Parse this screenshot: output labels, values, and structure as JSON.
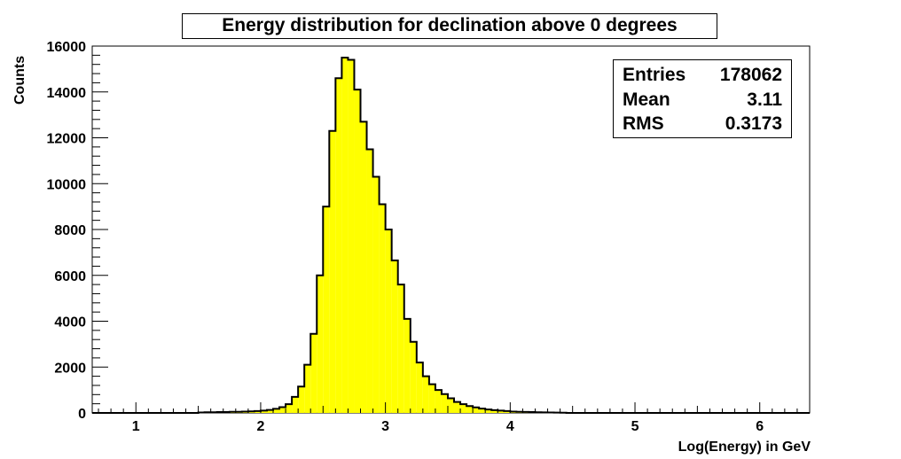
{
  "chart_data": {
    "type": "bar",
    "title": "Energy distribution for declination above 0 degrees",
    "xlabel": "Log(Energy) in GeV",
    "ylabel": "Counts",
    "xlim": [
      0.65,
      6.4
    ],
    "ylim": [
      0,
      16000
    ],
    "x_ticks": [
      1,
      2,
      3,
      4,
      5,
      6
    ],
    "y_ticks": [
      0,
      2000,
      4000,
      6000,
      8000,
      10000,
      12000,
      14000,
      16000
    ],
    "bin_width": 0.05,
    "x_start": 1.5,
    "values": [
      20,
      30,
      30,
      40,
      40,
      50,
      50,
      60,
      70,
      80,
      100,
      130,
      180,
      250,
      380,
      700,
      1150,
      2100,
      3450,
      6000,
      9000,
      12300,
      14600,
      15500,
      15400,
      14100,
      12700,
      11500,
      10300,
      9100,
      8000,
      6650,
      5600,
      4100,
      3100,
      2200,
      1600,
      1250,
      1000,
      820,
      640,
      480,
      380,
      300,
      240,
      190,
      150,
      120,
      100,
      80,
      60,
      50,
      45,
      40,
      30,
      25,
      20,
      15,
      10
    ],
    "fill_color": "#ffff00",
    "line_color": "#000000",
    "stats": [
      {
        "key": "Entries",
        "value": "178062"
      },
      {
        "key": "Mean",
        "value": "3.11"
      },
      {
        "key": "RMS",
        "value": "0.3173"
      }
    ]
  }
}
